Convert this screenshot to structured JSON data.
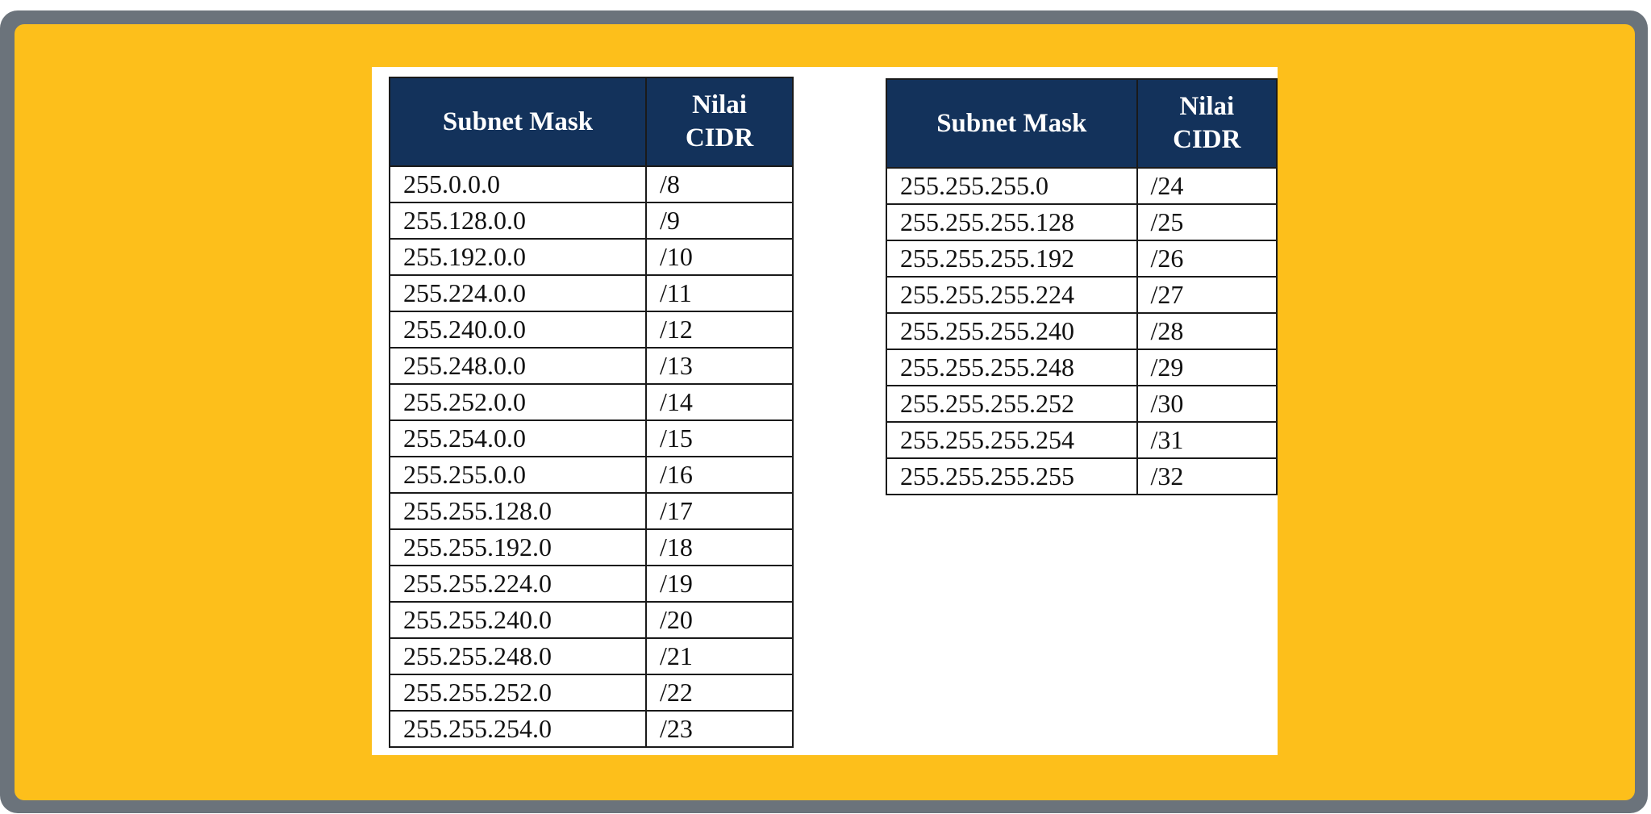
{
  "headers": {
    "mask": "Subnet Mask",
    "cidr_line1": "Nilai",
    "cidr_line2": "CIDR"
  },
  "colors": {
    "frame": "#6b737b",
    "background": "#fdbf1b",
    "header_bg": "#13325b",
    "header_text": "#ffffff"
  },
  "tables": [
    {
      "rows": [
        {
          "mask": "255.0.0.0",
          "cidr": "/8"
        },
        {
          "mask": "255.128.0.0",
          "cidr": "/9"
        },
        {
          "mask": "255.192.0.0",
          "cidr": "/10"
        },
        {
          "mask": "255.224.0.0",
          "cidr": "/11"
        },
        {
          "mask": "255.240.0.0",
          "cidr": "/12"
        },
        {
          "mask": "255.248.0.0",
          "cidr": "/13"
        },
        {
          "mask": "255.252.0.0",
          "cidr": "/14"
        },
        {
          "mask": "255.254.0.0",
          "cidr": "/15"
        },
        {
          "mask": "255.255.0.0",
          "cidr": "/16"
        },
        {
          "mask": "255.255.128.0",
          "cidr": "/17"
        },
        {
          "mask": "255.255.192.0",
          "cidr": "/18"
        },
        {
          "mask": "255.255.224.0",
          "cidr": "/19"
        },
        {
          "mask": "255.255.240.0",
          "cidr": "/20"
        },
        {
          "mask": "255.255.248.0",
          "cidr": "/21"
        },
        {
          "mask": "255.255.252.0",
          "cidr": "/22"
        },
        {
          "mask": "255.255.254.0",
          "cidr": "/23"
        }
      ]
    },
    {
      "rows": [
        {
          "mask": "255.255.255.0",
          "cidr": "/24"
        },
        {
          "mask": "255.255.255.128",
          "cidr": "/25"
        },
        {
          "mask": "255.255.255.192",
          "cidr": "/26"
        },
        {
          "mask": "255.255.255.224",
          "cidr": "/27"
        },
        {
          "mask": "255.255.255.240",
          "cidr": "/28"
        },
        {
          "mask": "255.255.255.248",
          "cidr": "/29"
        },
        {
          "mask": "255.255.255.252",
          "cidr": "/30"
        },
        {
          "mask": "255.255.255.254",
          "cidr": "/31"
        },
        {
          "mask": "255.255.255.255",
          "cidr": "/32"
        }
      ]
    }
  ]
}
